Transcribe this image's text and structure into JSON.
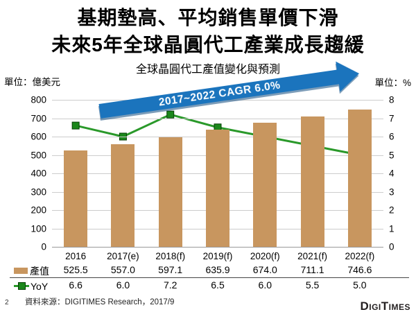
{
  "title": {
    "line1": "基期墊高、平均銷售單價下滑",
    "line2": "未來5年全球晶圓代工產業成長趨緩"
  },
  "page": {
    "number": "2",
    "source": "資料來源：DIGITIMES Research，2017/9",
    "logo": "DigiTimes"
  },
  "chart_data": {
    "type": "bar",
    "subtype": "bar+line combo with value table",
    "title": "全球晶圓代工產值變化與預測",
    "annotation": "2017~2022 CAGR 6.0%",
    "annotation_arrow_color": "#1B74BD",
    "grid": true,
    "legend_position": "bottom-table",
    "categories": [
      "2016",
      "2017(e)",
      "2018(f)",
      "2019(f)",
      "2020(f)",
      "2021(f)",
      "2022(f)"
    ],
    "series": [
      {
        "name": "產值",
        "type": "bar",
        "color": "#C8965F",
        "values": [
          525.5,
          557.0,
          597.1,
          635.9,
          674.0,
          711.1,
          746.6
        ]
      },
      {
        "name": "YoY",
        "type": "line",
        "color": "#2A992A",
        "marker_color": "#1B871B",
        "marker_border": "#063f06",
        "values": [
          6.6,
          6.0,
          7.2,
          6.5,
          6.0,
          5.5,
          5.0
        ]
      }
    ],
    "left_axis": {
      "unit_label": "單位：億美元",
      "min": 0,
      "max": 800,
      "step": 100
    },
    "right_axis": {
      "unit_label": "單位：%",
      "min": 0,
      "max": 8,
      "step": 1
    }
  }
}
